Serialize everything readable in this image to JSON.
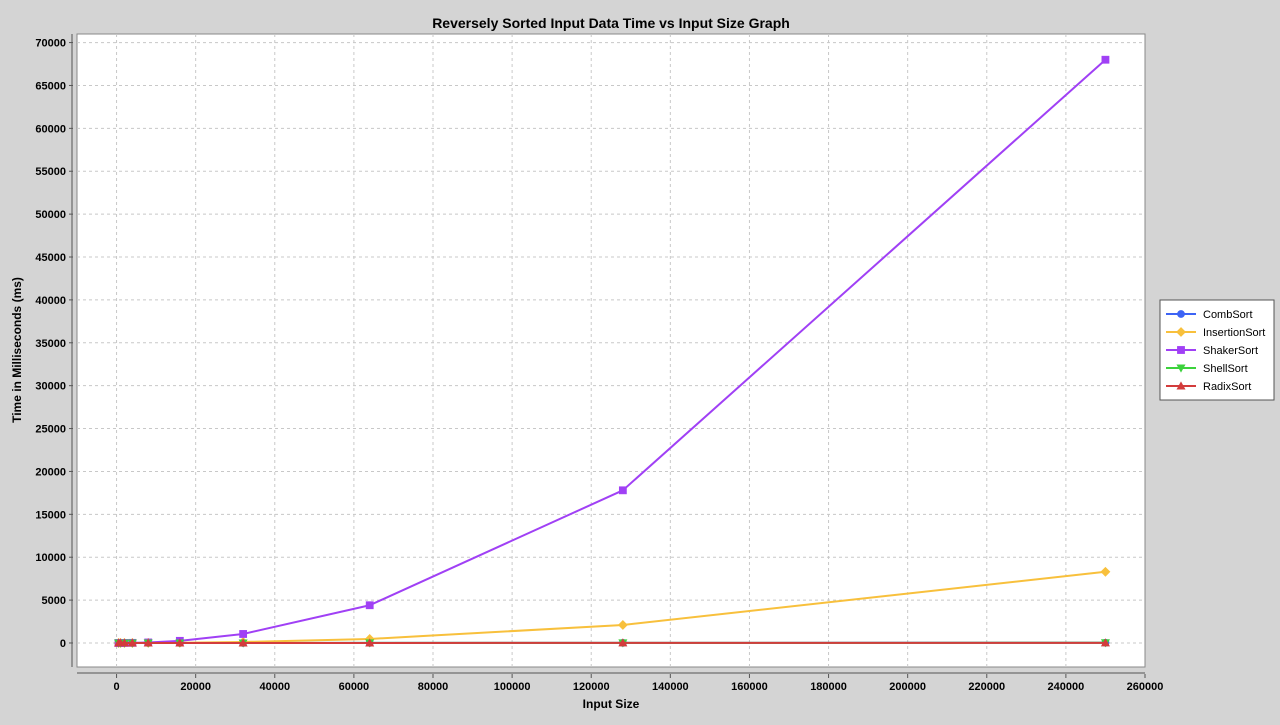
{
  "chart_data": {
    "type": "line",
    "title": "Reversely Sorted Input Data Time vs Input Size Graph",
    "xlabel": "Input Size",
    "ylabel": "Time in Milliseconds (ms)",
    "xlim": [
      -10000,
      260000
    ],
    "ylim": [
      -2800,
      71000
    ],
    "x_ticks": [
      0,
      20000,
      40000,
      60000,
      80000,
      100000,
      120000,
      140000,
      160000,
      180000,
      200000,
      220000,
      240000,
      260000
    ],
    "y_ticks": [
      0,
      5000,
      10000,
      15000,
      20000,
      25000,
      30000,
      35000,
      40000,
      45000,
      50000,
      55000,
      60000,
      65000,
      70000
    ],
    "grid": true,
    "legend_position": "right",
    "x": [
      500,
      1000,
      2000,
      4000,
      8000,
      16000,
      32000,
      64000,
      128000,
      250000
    ],
    "series": [
      {
        "name": "CombSort",
        "color": "#3d64f5",
        "marker": "circle",
        "values": [
          0,
          0,
          0,
          0,
          1,
          2,
          4,
          8,
          15,
          30
        ]
      },
      {
        "name": "InsertionSort",
        "color": "#f8c03c",
        "marker": "diamond",
        "values": [
          0,
          1,
          2,
          5,
          20,
          30,
          120,
          470,
          2100,
          8300
        ]
      },
      {
        "name": "ShakerSort",
        "color": "#a040f5",
        "marker": "square",
        "values": [
          1,
          2,
          5,
          15,
          60,
          250,
          1050,
          4400,
          17800,
          68000
        ]
      },
      {
        "name": "ShellSort",
        "color": "#3cd23c",
        "marker": "triangle-down",
        "values": [
          0,
          0,
          0,
          0,
          1,
          2,
          3,
          6,
          12,
          25
        ]
      },
      {
        "name": "RadixSort",
        "color": "#d33c3c",
        "marker": "triangle-up",
        "values": [
          0,
          0,
          0,
          0,
          1,
          1,
          2,
          4,
          8,
          15
        ]
      }
    ]
  }
}
